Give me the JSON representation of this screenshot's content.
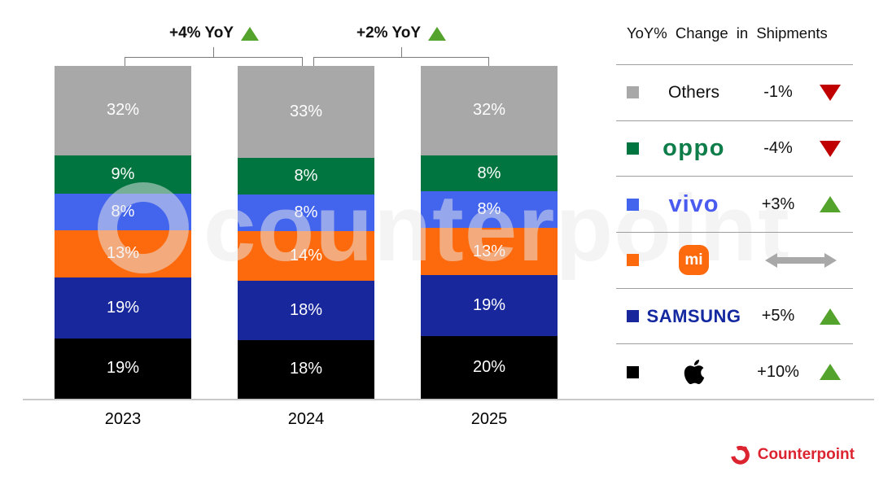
{
  "chart_data": {
    "type": "bar",
    "stacked": true,
    "unit": "%",
    "categories": [
      "2023",
      "2024",
      "2025"
    ],
    "series": [
      {
        "name": "Others",
        "color": "#a8a8a8",
        "values": [
          32,
          33,
          32
        ]
      },
      {
        "name": "OPPO",
        "color": "#00753f",
        "values": [
          9,
          8,
          8
        ]
      },
      {
        "name": "vivo",
        "color": "#4364ec",
        "values": [
          8,
          8,
          8
        ]
      },
      {
        "name": "Xiaomi",
        "color": "#fd6a0d",
        "values": [
          13,
          14,
          13
        ]
      },
      {
        "name": "Samsung",
        "color": "#18289c",
        "values": [
          19,
          18,
          19
        ]
      },
      {
        "name": "Apple",
        "color": "#000000",
        "values": [
          19,
          18,
          20
        ]
      }
    ],
    "annotations": [
      {
        "label": "+4% YoY",
        "direction": "up",
        "between": [
          "2023",
          "2024"
        ]
      },
      {
        "label": "+2% YoY",
        "direction": "up",
        "between": [
          "2024",
          "2025"
        ]
      }
    ],
    "legend_position": "right",
    "grid": false,
    "ylim": [
      0,
      100
    ]
  },
  "legend": {
    "title": "YoY% Change in Shipments",
    "rows": [
      {
        "name": "Others",
        "style": "plain",
        "label": "Others",
        "swatch": "#a8a8a8",
        "value": "-1%",
        "direction": "down"
      },
      {
        "name": "OPPO",
        "style": "oppo",
        "label": "oppo",
        "swatch": "#00753f",
        "value": "-4%",
        "direction": "down"
      },
      {
        "name": "vivo",
        "style": "vivo",
        "label": "vivo",
        "swatch": "#4364ec",
        "value": "+3%",
        "direction": "up"
      },
      {
        "name": "Xiaomi",
        "style": "mi",
        "label": "mi",
        "swatch": "#fd6a0d",
        "value": "",
        "direction": "flat"
      },
      {
        "name": "Samsung",
        "style": "samsung",
        "label": "SAMSUNG",
        "swatch": "#18289c",
        "value": "+5%",
        "direction": "up"
      },
      {
        "name": "Apple",
        "style": "apple",
        "label": "",
        "swatch": "#000000",
        "value": "+10%",
        "direction": "up"
      }
    ]
  },
  "colors": {
    "up_triangle": "#54a32c",
    "down_triangle": "#c00000",
    "flat_arrow": "#a8a8a8",
    "brand_red": "#dc2430",
    "samsung_blue": "#1428a0",
    "oppo_green": "#0e7d4a",
    "vivo_blue": "#4a5bf0"
  },
  "watermark": "counterpoint",
  "branding": {
    "logo_text": "Counterpoint"
  }
}
